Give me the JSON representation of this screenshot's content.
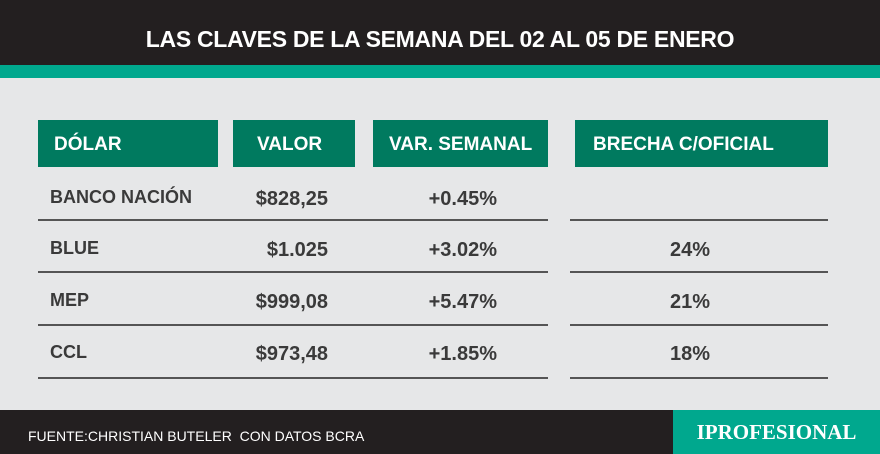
{
  "header": {
    "title": "LAS CLAVES DE LA SEMANA DEL 02 AL 05 DE ENERO"
  },
  "table": {
    "columns": [
      "DÓLAR",
      "VALOR",
      "VAR. SEMANAL",
      "BRECHA C/OFICIAL"
    ],
    "rows": [
      {
        "dolar": "BANCO NACIÓN",
        "valor": "$828,25",
        "var": "+0.45%"
      },
      {
        "dolar": "BLUE",
        "valor": "$1.025",
        "var": "+3.02%",
        "brecha": "24%"
      },
      {
        "dolar": "MEP",
        "valor": "$999,08",
        "var": "+5.47%",
        "brecha": "21%"
      },
      {
        "dolar": "CCL",
        "valor": "$973,48",
        "var": "+1.85%",
        "brecha": "18%"
      }
    ]
  },
  "footer": {
    "source": "FUENTE:CHRISTIAN BUTELER  CON DATOS BCRA",
    "logo": "IPROFESIONAL"
  }
}
